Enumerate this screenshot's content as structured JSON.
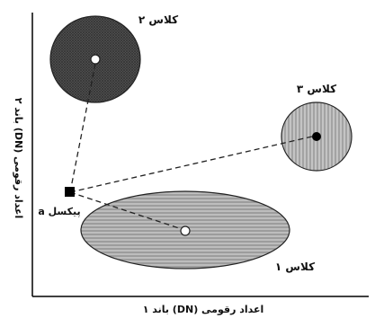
{
  "axes": {
    "x_label": "اعداد رقومی (DN) باند ۱",
    "y_label": "اعداد رقومی (DN) باند ۲"
  },
  "classes": [
    {
      "label": "کلاس ۱",
      "pattern": "horizontal-stripes",
      "fill": "#bdbdbd",
      "stripe": "#8f8f8f"
    },
    {
      "label": "کلاس ۲",
      "pattern": "cross-hatch",
      "fill": "#5a5a5a",
      "stripe": "#333333"
    },
    {
      "label": "کلاس ۳",
      "pattern": "vertical-stripes",
      "fill": "#c4c4c4",
      "stripe": "#959595"
    }
  ],
  "pixel": {
    "label": "پیکسل a"
  },
  "colors": {
    "axis": "#000000",
    "pixel_marker": "#000000",
    "distance_line": "#222222"
  }
}
